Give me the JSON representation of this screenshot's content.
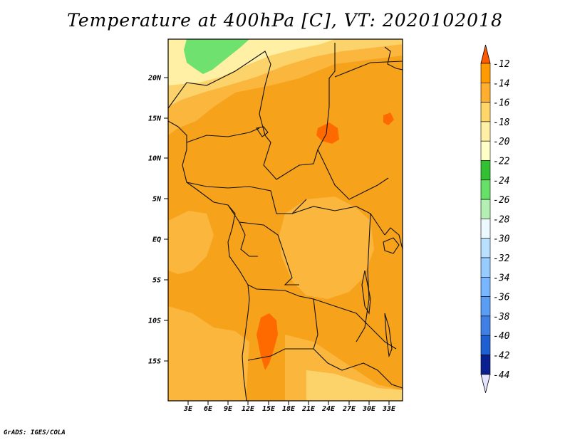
{
  "title": "Temperature at 400hPa [C], VT: 2020102018",
  "credit": "GrADS: IGES/COLA",
  "lat_labels": [
    "20N",
    "15N",
    "10N",
    "5N",
    "EQ",
    "5S",
    "10S",
    "15S"
  ],
  "lon_labels": [
    "3E",
    "6E",
    "9E",
    "12E",
    "15E",
    "18E",
    "21E",
    "24E",
    "27E",
    "30E",
    "33E"
  ],
  "colorbar": {
    "labels": [
      "-12",
      "-14",
      "-16",
      "-18",
      "-20",
      "-22",
      "-24",
      "-26",
      "-28",
      "-30",
      "-32",
      "-34",
      "-36",
      "-38",
      "-40",
      "-42",
      "-44"
    ],
    "colors": [
      "#ff5a00",
      "#ff9a00",
      "#ffae2e",
      "#ffd66a",
      "#fff0a6",
      "#ffffc8",
      "#33c033",
      "#66e066",
      "#b4f0b4",
      "#ecfaff",
      "#b9e0ff",
      "#96ccff",
      "#78b7ff",
      "#5a9df5",
      "#3f7fe6",
      "#1e5fd2",
      "#0a2090"
    ],
    "top_color": "#ff5a00",
    "bottom_color": "#e4e4ff"
  },
  "map_colors": {
    "warm_dominant": "#f7a21b",
    "light_orange": "#fbb63e",
    "yellow": "#fcd36a",
    "pale_yellow": "#fff0a6",
    "green": "#6ee16e",
    "hot_spot": "#ff6a00"
  }
}
